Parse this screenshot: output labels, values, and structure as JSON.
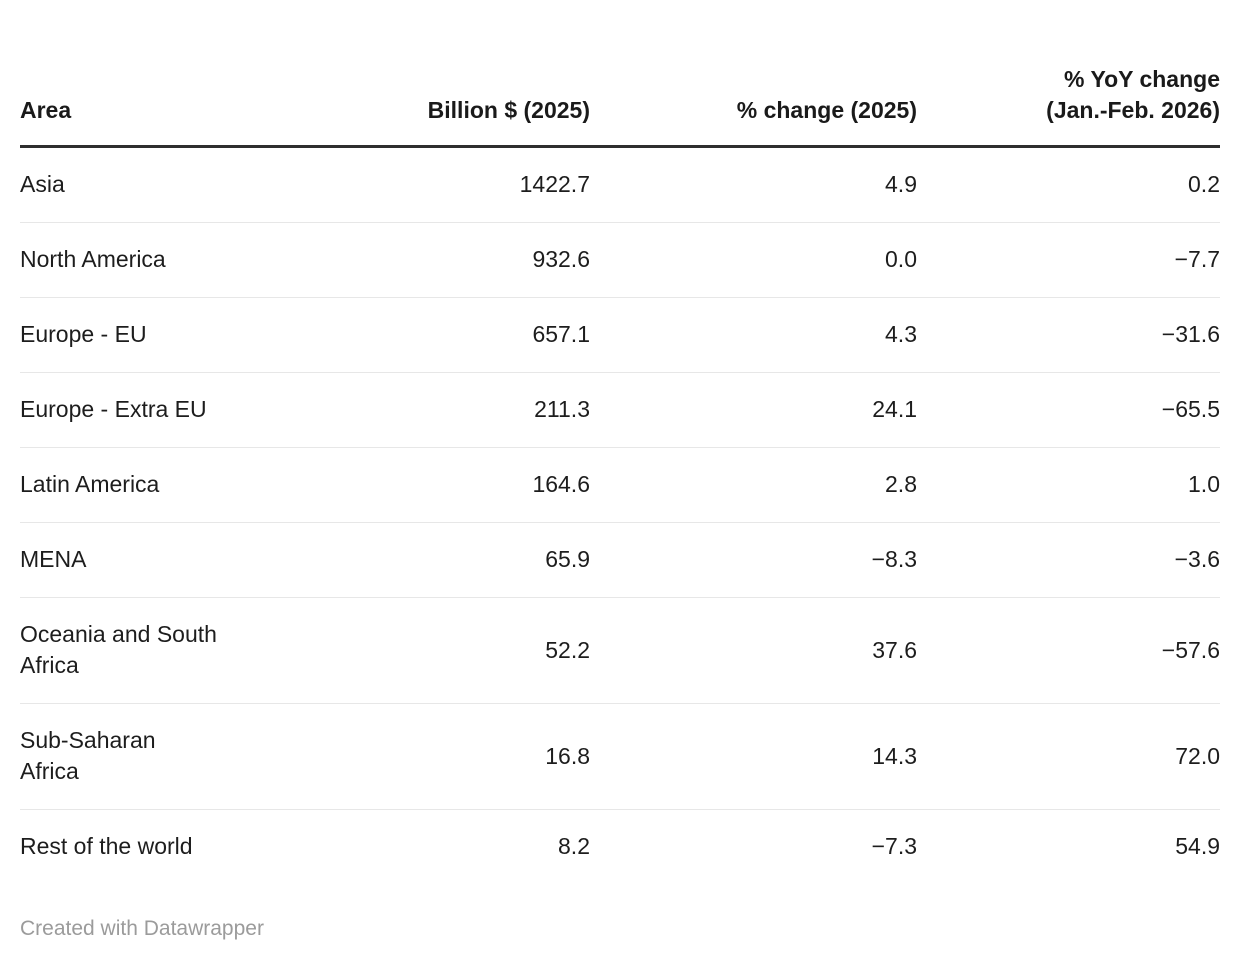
{
  "chart_data": {
    "type": "table",
    "title": "",
    "columns": [
      "Area",
      "Billion $ (2025)",
      "% change (2025)",
      "% YoY change (Jan.-Feb. 2026)"
    ],
    "rows": [
      {
        "area": "Asia",
        "billion_2025": 1422.7,
        "pct_change_2025": 4.9,
        "yoy_change_jan_feb_2026": 0.2
      },
      {
        "area": "North America",
        "billion_2025": 932.6,
        "pct_change_2025": 0.0,
        "yoy_change_jan_feb_2026": -7.7
      },
      {
        "area": "Europe - EU",
        "billion_2025": 657.1,
        "pct_change_2025": 4.3,
        "yoy_change_jan_feb_2026": -31.6
      },
      {
        "area": "Europe - Extra EU",
        "billion_2025": 211.3,
        "pct_change_2025": 24.1,
        "yoy_change_jan_feb_2026": -65.5
      },
      {
        "area": "Latin America",
        "billion_2025": 164.6,
        "pct_change_2025": 2.8,
        "yoy_change_jan_feb_2026": 1.0
      },
      {
        "area": "MENA",
        "billion_2025": 65.9,
        "pct_change_2025": -8.3,
        "yoy_change_jan_feb_2026": -3.6
      },
      {
        "area": "Oceania and South Africa",
        "billion_2025": 52.2,
        "pct_change_2025": 37.6,
        "yoy_change_jan_feb_2026": -57.6
      },
      {
        "area": "Sub-Saharan Africa",
        "billion_2025": 16.8,
        "pct_change_2025": 14.3,
        "yoy_change_jan_feb_2026": 72.0
      },
      {
        "area": "Rest of the world",
        "billion_2025": 8.2,
        "pct_change_2025": -7.3,
        "yoy_change_jan_feb_2026": 54.9
      }
    ]
  },
  "table": {
    "headers": {
      "area": "Area",
      "billion": "Billion $ (2025)",
      "pct_change": "% change (2025)",
      "yoy_change": "% YoY change\n(Jan.-Feb. 2026)"
    },
    "rows": [
      {
        "area": "Asia",
        "billion": "1422.7",
        "pct_change": "4.9",
        "yoy_change": "0.2"
      },
      {
        "area": "North America",
        "billion": "932.6",
        "pct_change": "0.0",
        "yoy_change": "−7.7"
      },
      {
        "area": "Europe - EU",
        "billion": "657.1",
        "pct_change": "4.3",
        "yoy_change": "−31.6"
      },
      {
        "area": "Europe - Extra EU",
        "billion": "211.3",
        "pct_change": "24.1",
        "yoy_change": "−65.5"
      },
      {
        "area": "Latin America",
        "billion": "164.6",
        "pct_change": "2.8",
        "yoy_change": "1.0"
      },
      {
        "area": "MENA",
        "billion": "65.9",
        "pct_change": "−8.3",
        "yoy_change": "−3.6"
      },
      {
        "area": "Oceania and South\nAfrica",
        "billion": "52.2",
        "pct_change": "37.6",
        "yoy_change": "−57.6"
      },
      {
        "area": "Sub-Saharan\nAfrica",
        "billion": "16.8",
        "pct_change": "14.3",
        "yoy_change": "72.0"
      },
      {
        "area": "Rest of the world",
        "billion": "8.2",
        "pct_change": "−7.3",
        "yoy_change": "54.9"
      }
    ]
  },
  "footer": {
    "credit": "Created with Datawrapper"
  },
  "colors": {
    "text": "#1d1d1d",
    "header_rule": "#2e2e2e",
    "row_divider": "#e7e7e7",
    "footer_text": "#9b9b9b",
    "background": "#ffffff"
  }
}
